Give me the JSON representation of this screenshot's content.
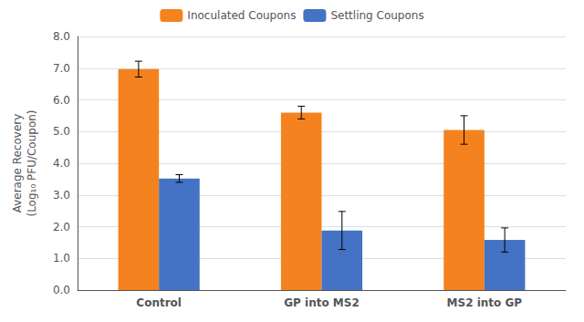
{
  "chart_data": {
    "type": "bar",
    "ylabel": "Average Recovery\n(Log₁₀ PFU/Coupon)",
    "categories": [
      "Control",
      "GP into MS2",
      "MS2 into GP"
    ],
    "series": [
      {
        "name": "Inoculated Coupons",
        "color": "#F4831F",
        "values": [
          6.97,
          5.6,
          5.05
        ],
        "errors": [
          0.25,
          0.2,
          0.45
        ]
      },
      {
        "name": "Settling Coupons",
        "color": "#4472C4",
        "values": [
          3.52,
          1.88,
          1.58
        ],
        "errors": [
          0.12,
          0.6,
          0.38
        ]
      }
    ],
    "ylim": [
      0.0,
      8.0
    ],
    "yticks": [
      {
        "value": 0,
        "label": "0.0"
      },
      {
        "value": 1,
        "label": "1.0"
      },
      {
        "value": 2,
        "label": "2.0"
      },
      {
        "value": 3,
        "label": "3.0"
      },
      {
        "value": 4,
        "label": "4.0"
      },
      {
        "value": 5,
        "label": "5.0"
      },
      {
        "value": 6,
        "label": "6.0"
      },
      {
        "value": 7,
        "label": "7.0"
      },
      {
        "value": 8,
        "label": "8.0"
      }
    ],
    "grid": true,
    "legend": "top"
  }
}
